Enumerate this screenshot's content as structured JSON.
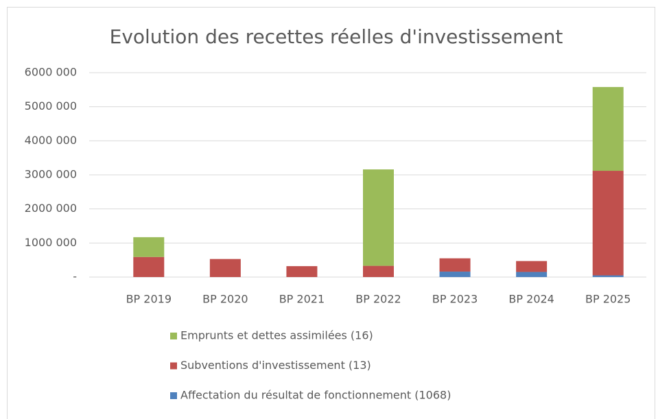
{
  "chart_data": {
    "type": "stacked_bar",
    "title": "Evolution des recettes réelles d'investissement",
    "categories": [
      "BP 2019",
      "BP 2020",
      "BP 2021",
      "BP 2022",
      "BP 2023",
      "BP 2024",
      "BP 2025"
    ],
    "series": [
      {
        "name": "Affectation du résultat de fonctionnement (1068)",
        "color": "#4f81bd",
        "values": [
          0,
          0,
          0,
          0,
          160000,
          150000,
          50000
        ]
      },
      {
        "name": "Subventions d'investissement (13)",
        "color": "#c0504d",
        "values": [
          590000,
          530000,
          320000,
          330000,
          390000,
          320000,
          3070000
        ]
      },
      {
        "name": "Emprunts et dettes assimilées (16)",
        "color": "#9bbb59",
        "values": [
          580000,
          0,
          0,
          2830000,
          0,
          0,
          2460000
        ]
      }
    ],
    "ylim": [
      0,
      6000000
    ],
    "yticks": [
      {
        "value": 0,
        "label": "-"
      },
      {
        "value": 1000000,
        "label": "1000 000"
      },
      {
        "value": 2000000,
        "label": "2000 000"
      },
      {
        "value": 3000000,
        "label": "3000 000"
      },
      {
        "value": 4000000,
        "label": "4000 000"
      },
      {
        "value": 5000000,
        "label": "5000 000"
      },
      {
        "value": 6000000,
        "label": "6000 000"
      }
    ],
    "grid": true,
    "legend": "bottom"
  }
}
